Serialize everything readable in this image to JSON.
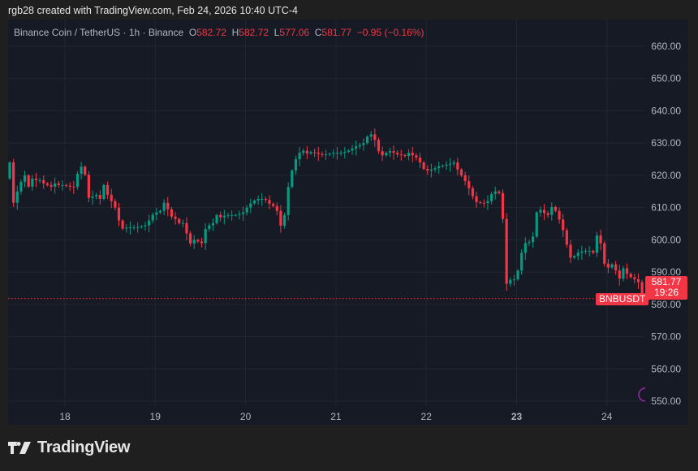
{
  "header": {
    "credit": "rgb28 created with TradingView.com, Feb 24, 2026 10:40 UTC-4"
  },
  "legend": {
    "symbol": "Binance Coin / TetherUS · 1h · Binance",
    "o_label": "O",
    "o_value": "582.72",
    "h_label": "H",
    "h_value": "582.72",
    "l_label": "L",
    "l_value": "577.06",
    "c_label": "C",
    "c_value": "581.77",
    "change": "−0.95 (−0.16%)"
  },
  "price_tag": {
    "symbol": "BNBUSDT",
    "price": "581.77",
    "countdown": "19:26"
  },
  "branding": {
    "logo_text": "TradingView"
  },
  "colors": {
    "up": "#089981",
    "down": "#f23645",
    "background": "#161a25",
    "grid": "#222632",
    "accent_icon": "#9c27b0"
  },
  "chart_data": {
    "type": "candlestick",
    "interval": "1h",
    "grid": true,
    "y_axis": {
      "position": "right",
      "range": [
        548,
        664
      ],
      "ticks": [
        "660.00",
        "650.00",
        "640.00",
        "630.00",
        "620.00",
        "610.00",
        "600.00",
        "590.00",
        "580.00",
        "570.00",
        "560.00",
        "550.00"
      ]
    },
    "x_axis": {
      "ticks": [
        {
          "label": "18",
          "bold": false
        },
        {
          "label": "19",
          "bold": false
        },
        {
          "label": "20",
          "bold": false
        },
        {
          "label": "21",
          "bold": false
        },
        {
          "label": "22",
          "bold": false
        },
        {
          "label": "23",
          "bold": true
        },
        {
          "label": "24",
          "bold": false
        }
      ]
    },
    "first_open": 619,
    "closes": [
      624,
      611.5,
      615,
      618,
      620,
      616.5,
      619,
      618.5,
      618.5,
      617.5,
      617,
      616.5,
      617.5,
      617,
      617,
      616.8,
      616.5,
      616.4,
      620.5,
      622.7,
      620.2,
      613,
      613.5,
      613.9,
      612.7,
      617,
      614,
      612,
      610,
      606,
      603.5,
      603.8,
      603.9,
      603.9,
      604,
      604.2,
      604.5,
      606,
      607.8,
      608.5,
      609,
      611.5,
      609.5,
      607.2,
      606.5,
      605.2,
      605.2,
      602,
      598.9,
      600,
      599.5,
      599,
      603.4,
      604.5,
      605.2,
      607.7,
      607,
      607.5,
      607.7,
      607.7,
      607.7,
      608,
      608.5,
      610,
      611.3,
      612.2,
      612.7,
      612.7,
      612.4,
      611.2,
      610.5,
      609,
      604.4,
      607.7,
      616.4,
      621.5,
      625,
      627,
      627.6,
      626.8,
      627.2,
      627,
      626.6,
      626.5,
      626.5,
      626.7,
      627,
      627,
      627,
      627.3,
      627.7,
      628.3,
      629,
      629.4,
      630,
      632,
      632.7,
      631,
      627.5,
      626.2,
      627,
      627.5,
      627,
      626.5,
      626.3,
      626,
      627,
      626.2,
      625.5,
      624,
      622,
      621.5,
      621.8,
      622.2,
      622.8,
      623,
      623.3,
      623.6,
      624,
      621.8,
      620,
      618.2,
      616,
      613.5,
      611.7,
      611.5,
      611.4,
      612,
      614.2,
      615,
      614.5,
      606.5,
      586.4,
      587.6,
      587.8,
      590.5,
      596,
      599,
      599.3,
      601,
      608.5,
      609.3,
      608.3,
      607.7,
      610.2,
      609,
      606.3,
      603,
      598.5,
      594.5,
      595,
      596,
      596.4,
      596.6,
      596.6,
      596,
      601.4,
      598.9,
      592.6,
      591.4,
      592.4,
      590.5,
      588,
      591.2,
      589.5,
      588.4,
      587.8,
      586.9,
      581.77
    ],
    "last_price": 581.77
  }
}
